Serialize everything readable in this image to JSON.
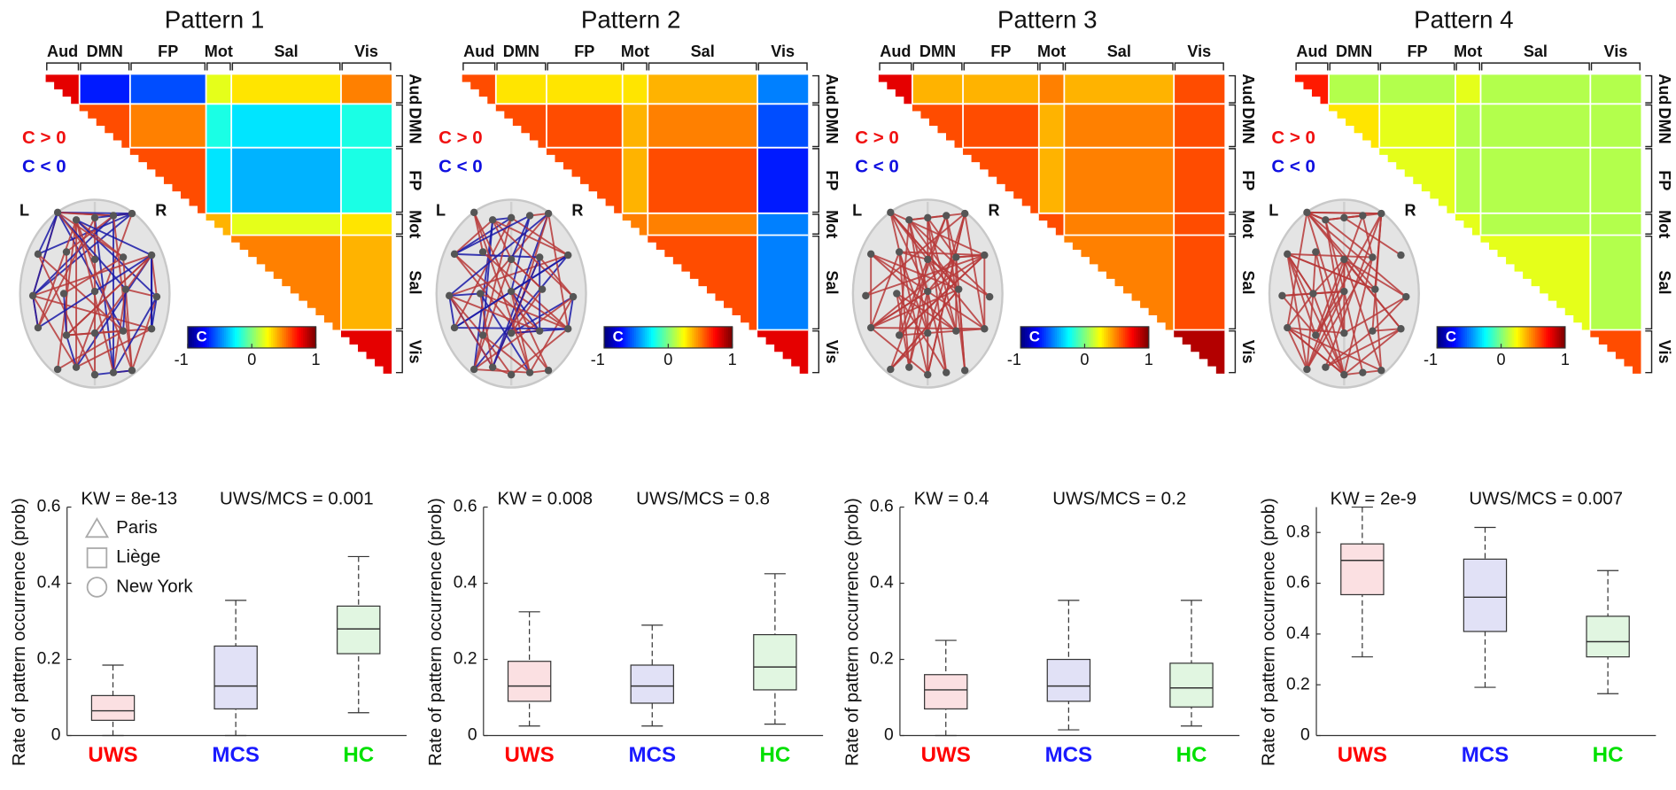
{
  "chart_data": [
    {
      "type": "heatmap",
      "title": "Pattern 1",
      "categories": [
        "Aud",
        "DMN",
        "FP",
        "Mot",
        "Sal",
        "Vis"
      ],
      "values": [
        [
          0.8,
          -0.7,
          -0.6,
          0.2,
          0.3,
          0.5
        ],
        [
          null,
          0.6,
          0.5,
          -0.2,
          -0.3,
          -0.2
        ],
        [
          null,
          null,
          0.6,
          -0.3,
          -0.4,
          -0.2
        ],
        [
          null,
          null,
          null,
          0.4,
          0.2,
          0.3
        ],
        [
          null,
          null,
          null,
          null,
          0.5,
          0.4
        ],
        [
          null,
          null,
          null,
          null,
          null,
          0.8
        ]
      ],
      "zlim": [
        -1,
        1
      ],
      "zticks": [
        -1,
        0,
        1
      ],
      "colorbar_label": "C",
      "annotations": [
        "C > 0",
        "C < 0"
      ],
      "hemispheres": [
        "L",
        "R"
      ]
    },
    {
      "type": "heatmap",
      "title": "Pattern 2",
      "categories": [
        "Aud",
        "DMN",
        "FP",
        "Mot",
        "Sal",
        "Vis"
      ],
      "values": [
        [
          0.6,
          0.3,
          0.3,
          0.3,
          0.4,
          -0.5
        ],
        [
          null,
          0.6,
          0.6,
          0.4,
          0.5,
          -0.6
        ],
        [
          null,
          null,
          0.6,
          0.4,
          0.6,
          -0.7
        ],
        [
          null,
          null,
          null,
          0.5,
          0.5,
          -0.5
        ],
        [
          null,
          null,
          null,
          null,
          0.6,
          -0.5
        ],
        [
          null,
          null,
          null,
          null,
          null,
          0.8
        ]
      ],
      "zlim": [
        -1,
        1
      ],
      "zticks": [
        -1,
        0,
        1
      ],
      "colorbar_label": "C",
      "annotations": [
        "C > 0",
        "C < 0"
      ],
      "hemispheres": [
        "L",
        "R"
      ]
    },
    {
      "type": "heatmap",
      "title": "Pattern 3",
      "categories": [
        "Aud",
        "DMN",
        "FP",
        "Mot",
        "Sal",
        "Vis"
      ],
      "values": [
        [
          0.8,
          0.4,
          0.4,
          0.5,
          0.4,
          0.6
        ],
        [
          null,
          0.6,
          0.6,
          0.4,
          0.5,
          0.6
        ],
        [
          null,
          null,
          0.6,
          0.4,
          0.5,
          0.6
        ],
        [
          null,
          null,
          null,
          0.6,
          0.5,
          0.6
        ],
        [
          null,
          null,
          null,
          null,
          0.5,
          0.6
        ],
        [
          null,
          null,
          null,
          null,
          null,
          0.9
        ]
      ],
      "zlim": [
        -1,
        1
      ],
      "zticks": [
        -1,
        0,
        1
      ],
      "colorbar_label": "C",
      "annotations": [
        "C > 0",
        "C < 0"
      ],
      "hemispheres": [
        "L",
        "R"
      ]
    },
    {
      "type": "heatmap",
      "title": "Pattern 4",
      "categories": [
        "Aud",
        "DMN",
        "FP",
        "Mot",
        "Sal",
        "Vis"
      ],
      "values": [
        [
          0.7,
          0.1,
          0.1,
          0.2,
          0.1,
          0.1
        ],
        [
          null,
          0.3,
          0.2,
          0.1,
          0.1,
          0.1
        ],
        [
          null,
          null,
          0.2,
          0.1,
          0.1,
          0.1
        ],
        [
          null,
          null,
          null,
          0.2,
          0.1,
          0.1
        ],
        [
          null,
          null,
          null,
          null,
          0.2,
          0.1
        ],
        [
          null,
          null,
          null,
          null,
          null,
          0.6
        ]
      ],
      "zlim": [
        -1,
        1
      ],
      "zticks": [
        -1,
        0,
        1
      ],
      "colorbar_label": "C",
      "annotations": [
        "C > 0",
        "C < 0"
      ],
      "hemispheres": [
        "L",
        "R"
      ]
    },
    {
      "type": "box",
      "ylabel": "Rate of pattern occurrence (prob)",
      "annotations": [
        "KW = 8e-13",
        "UWS/MCS = 0.001"
      ],
      "legend": [
        "Paris",
        "Liège",
        "New York"
      ],
      "categories": [
        "UWS",
        "MCS",
        "HC"
      ],
      "colors": [
        "#ff0000",
        "#1a1aff",
        "#00e000"
      ],
      "fills": [
        "#fadadd",
        "#dcdcf5",
        "#dcf5dc"
      ],
      "whisker_low": [
        0,
        0,
        0.06
      ],
      "q1": [
        0.04,
        0.07,
        0.215
      ],
      "median": [
        0.065,
        0.13,
        0.28
      ],
      "q3": [
        0.105,
        0.235,
        0.34
      ],
      "whisker_high": [
        0.185,
        0.355,
        0.47
      ],
      "ylim": [
        0,
        0.6
      ],
      "yticks": [
        0,
        0.2,
        0.4,
        0.6
      ]
    },
    {
      "type": "box",
      "ylabel": "Rate of pattern occurrence (prob)",
      "annotations": [
        "KW = 0.008",
        "UWS/MCS = 0.8"
      ],
      "categories": [
        "UWS",
        "MCS",
        "HC"
      ],
      "colors": [
        "#ff0000",
        "#1a1aff",
        "#00e000"
      ],
      "fills": [
        "#fadadd",
        "#dcdcf5",
        "#dcf5dc"
      ],
      "whisker_low": [
        0.025,
        0.025,
        0.03
      ],
      "q1": [
        0.09,
        0.085,
        0.12
      ],
      "median": [
        0.13,
        0.13,
        0.18
      ],
      "q3": [
        0.195,
        0.185,
        0.265
      ],
      "whisker_high": [
        0.325,
        0.29,
        0.425
      ],
      "ylim": [
        0,
        0.6
      ],
      "yticks": [
        0,
        0.2,
        0.4,
        0.6
      ]
    },
    {
      "type": "box",
      "ylabel": "Rate of pattern occurrence (prob)",
      "annotations": [
        "KW = 0.4",
        "UWS/MCS = 0.2"
      ],
      "categories": [
        "UWS",
        "MCS",
        "HC"
      ],
      "colors": [
        "#ff0000",
        "#1a1aff",
        "#00e000"
      ],
      "fills": [
        "#fadadd",
        "#dcdcf5",
        "#dcf5dc"
      ],
      "whisker_low": [
        0,
        0.015,
        0.025
      ],
      "q1": [
        0.07,
        0.09,
        0.075
      ],
      "median": [
        0.12,
        0.13,
        0.125
      ],
      "q3": [
        0.16,
        0.2,
        0.19
      ],
      "whisker_high": [
        0.25,
        0.355,
        0.355
      ],
      "ylim": [
        0,
        0.6
      ],
      "yticks": [
        0,
        0.2,
        0.4,
        0.6
      ]
    },
    {
      "type": "box",
      "ylabel": "Rate of pattern occurrence (prob)",
      "annotations": [
        "KW = 2e-9",
        "UWS/MCS = 0.007"
      ],
      "categories": [
        "UWS",
        "MCS",
        "HC"
      ],
      "colors": [
        "#ff0000",
        "#1a1aff",
        "#00e000"
      ],
      "fills": [
        "#fadadd",
        "#dcdcf5",
        "#dcf5dc"
      ],
      "whisker_low": [
        0.31,
        0.19,
        0.165
      ],
      "q1": [
        0.555,
        0.41,
        0.31
      ],
      "median": [
        0.69,
        0.545,
        0.37
      ],
      "q3": [
        0.755,
        0.695,
        0.47
      ],
      "whisker_high": [
        0.9,
        0.82,
        0.65
      ],
      "ylim": [
        0,
        0.9
      ],
      "yticks": [
        0,
        0.2,
        0.4,
        0.6,
        0.8
      ]
    }
  ]
}
